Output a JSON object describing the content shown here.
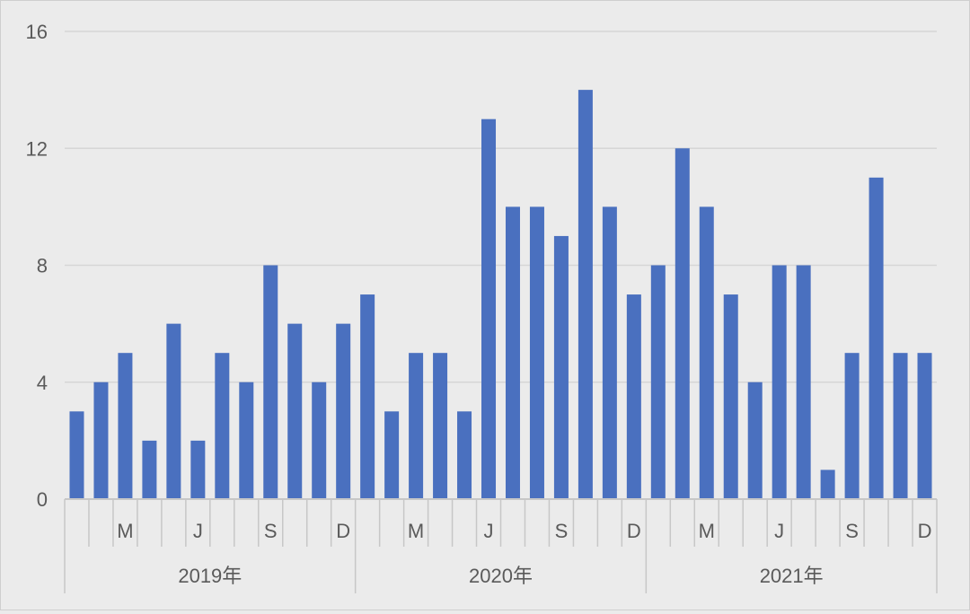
{
  "chart_data": {
    "type": "bar",
    "x": [
      "2019-01",
      "2019-02",
      "2019-03",
      "2019-04",
      "2019-05",
      "2019-06",
      "2019-07",
      "2019-08",
      "2019-09",
      "2019-10",
      "2019-11",
      "2019-12",
      "2020-01",
      "2020-02",
      "2020-03",
      "2020-04",
      "2020-05",
      "2020-06",
      "2020-07",
      "2020-08",
      "2020-09",
      "2020-10",
      "2020-11",
      "2020-12",
      "2021-01",
      "2021-02",
      "2021-03",
      "2021-04",
      "2021-05",
      "2021-06",
      "2021-07",
      "2021-08",
      "2021-09",
      "2021-10",
      "2021-11",
      "2021-12"
    ],
    "values": [
      3,
      4,
      5,
      2,
      6,
      2,
      5,
      4,
      8,
      6,
      4,
      6,
      7,
      3,
      5,
      5,
      3,
      13,
      10,
      10,
      9,
      14,
      10,
      7,
      8,
      12,
      10,
      7,
      4,
      8,
      8,
      1,
      5,
      11,
      5,
      5
    ],
    "month_labels": [
      "",
      "",
      "M",
      "",
      "",
      "J",
      "",
      "",
      "S",
      "",
      "",
      "D",
      "",
      "",
      "M",
      "",
      "",
      "J",
      "",
      "",
      "S",
      "",
      "",
      "D",
      "",
      "",
      "M",
      "",
      "",
      "J",
      "",
      "",
      "S",
      "",
      "",
      "D"
    ],
    "year_labels": [
      "2019年",
      "2020年",
      "2021年"
    ],
    "y_ticks": [
      "0",
      "4",
      "8",
      "12",
      "16"
    ],
    "ylim": [
      0,
      16
    ],
    "grid": true,
    "bar_color": "#4a70bf",
    "grid_color": "#d6d6d6",
    "axis_color": "#c7c7c7"
  }
}
